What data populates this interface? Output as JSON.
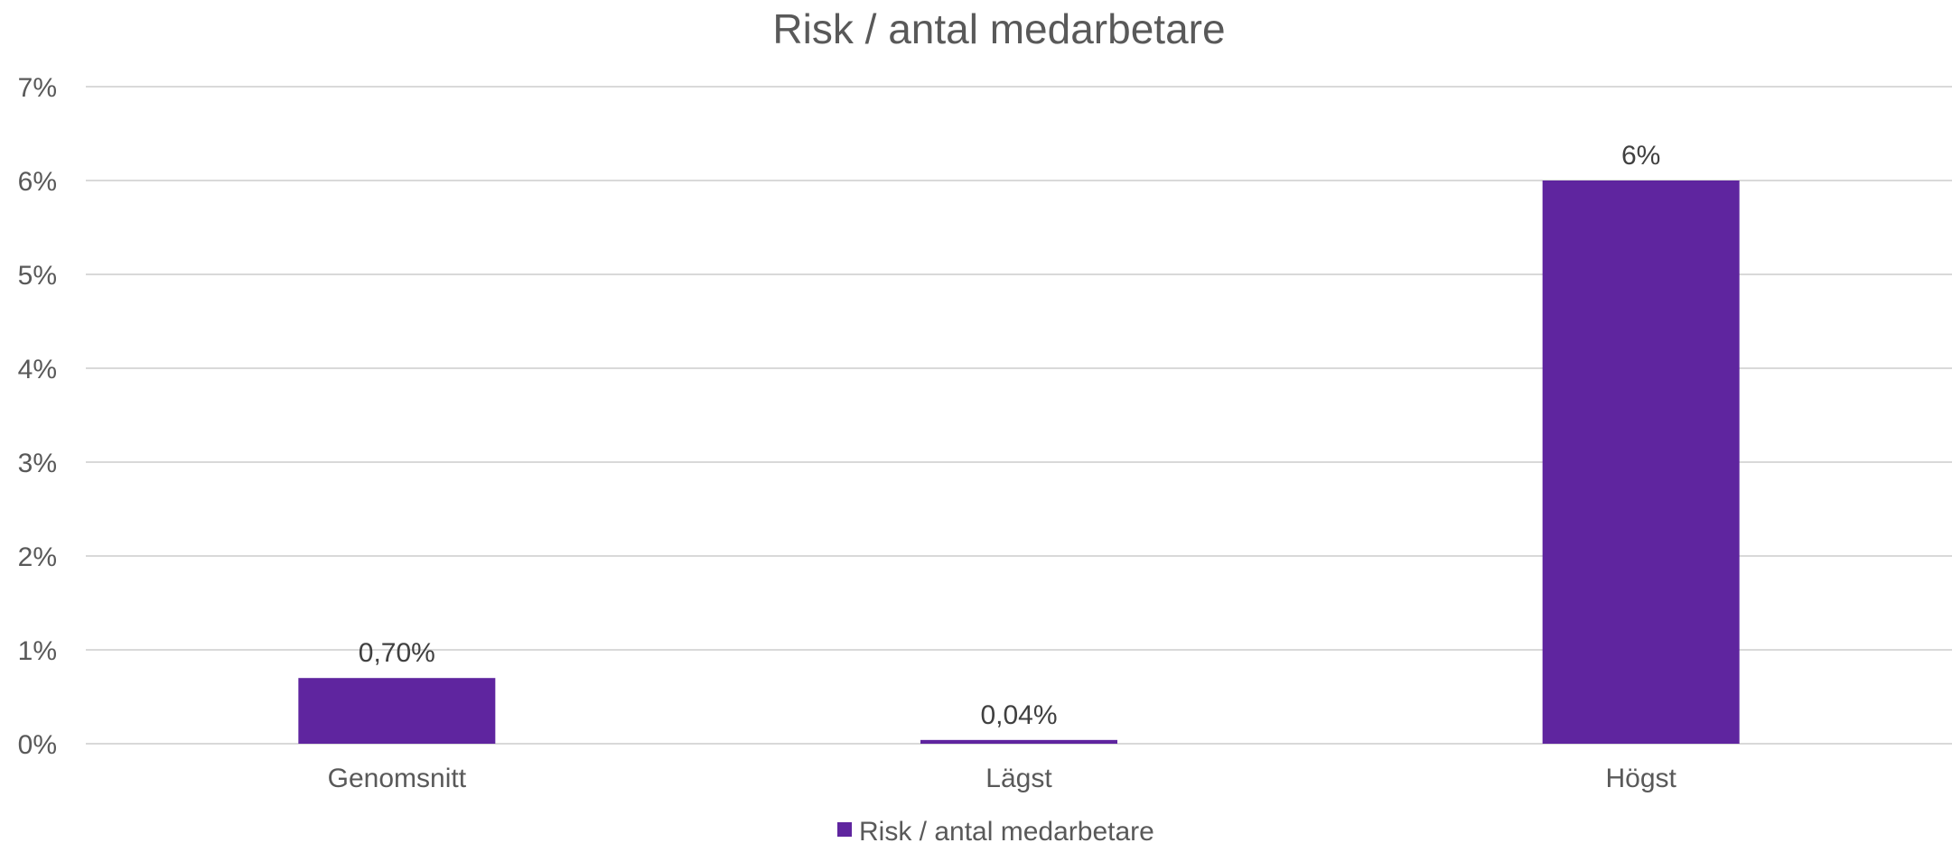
{
  "chart_data": {
    "type": "bar",
    "title": "Risk / antal medarbetare",
    "categories": [
      "Genomsnitt",
      "Lägst",
      "Högst"
    ],
    "series": [
      {
        "name": "Risk / antal medarbetare",
        "values": [
          0.7,
          0.04,
          6
        ],
        "data_labels": [
          "0,70%",
          "0,04%",
          "6%"
        ],
        "color": "#5f259f"
      }
    ],
    "y_ticks": [
      "0%",
      "1%",
      "2%",
      "3%",
      "4%",
      "5%",
      "6%",
      "7%"
    ],
    "ylim": [
      0,
      7
    ],
    "grid": true,
    "legend": "bottom"
  }
}
